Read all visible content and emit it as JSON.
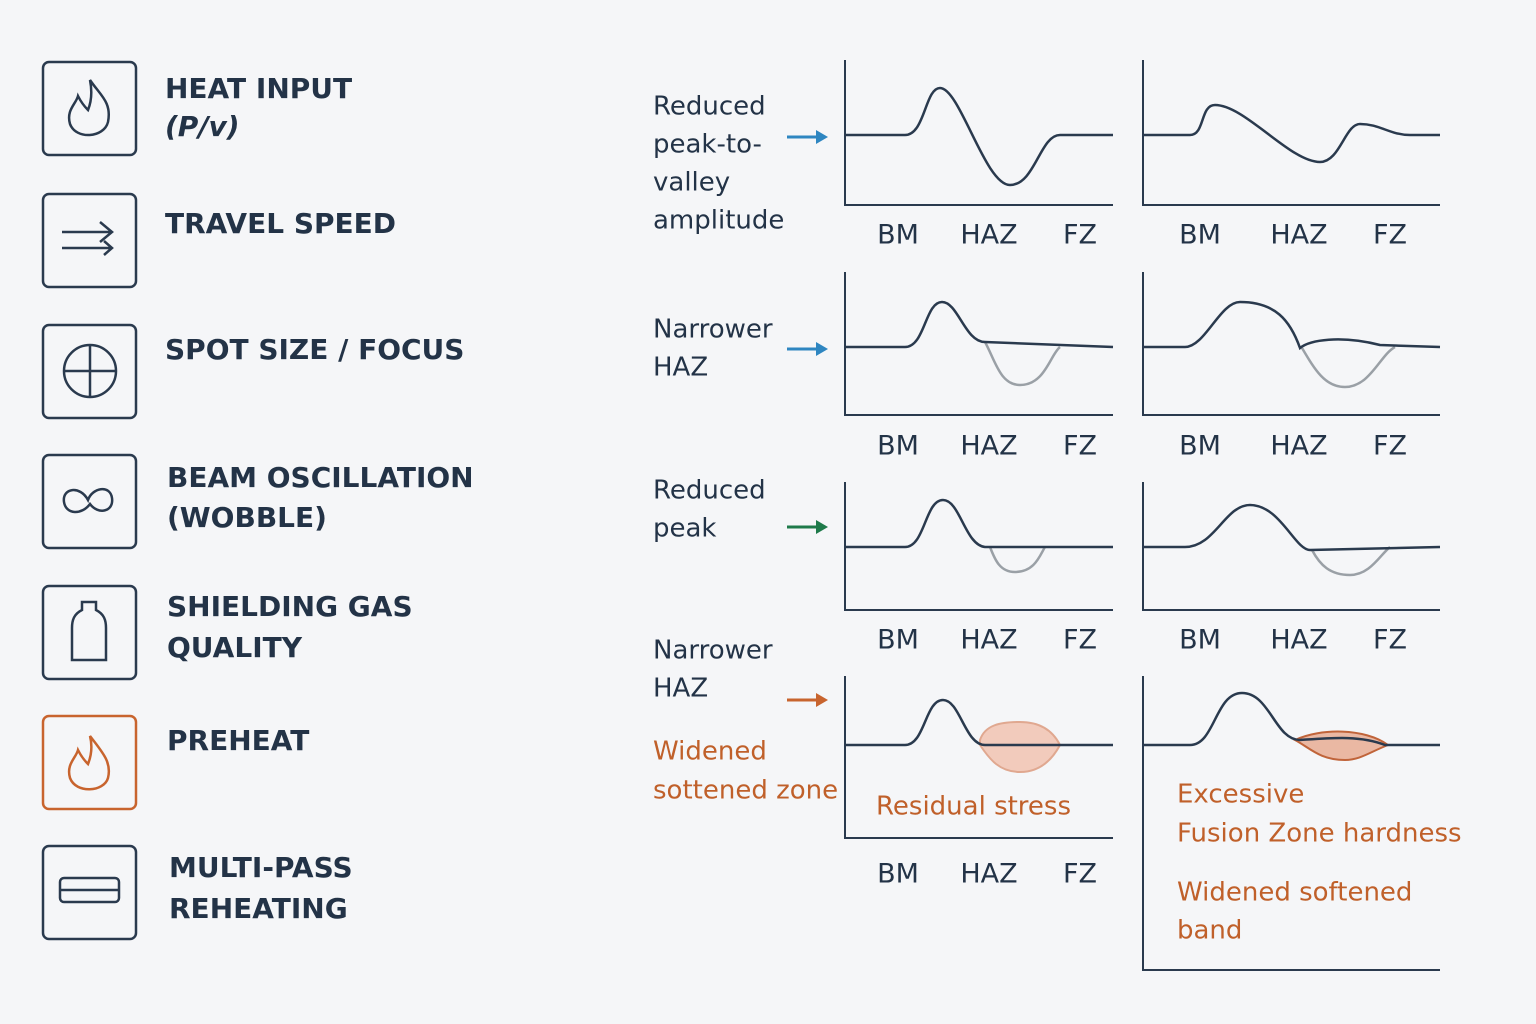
{
  "parameters": [
    {
      "lines": [
        "HEAT INPUT",
        "(P/v)"
      ]
    },
    {
      "lines": [
        "TRAVEL SPEED"
      ]
    },
    {
      "lines": [
        "SPOT SIZE / FOCUS"
      ]
    },
    {
      "lines": [
        "BEAM OSCILLATION",
        "(WOBBLE)"
      ]
    },
    {
      "lines": [
        "SHIELDING GAS",
        "QUALITY"
      ]
    },
    {
      "lines": [
        "PREHEAT"
      ]
    },
    {
      "lines": [
        "MULTI-PASS",
        "REHEATING"
      ]
    }
  ],
  "rows": [
    {
      "note": [
        "Reduced",
        "peak-to-",
        "valley",
        "amplitude"
      ]
    },
    {
      "note": [
        "Narrower",
        "HAZ"
      ]
    },
    {
      "note": [
        "Reduced",
        "peak"
      ]
    },
    {
      "note": [
        "Narrower",
        "HAZ"
      ],
      "warning": [
        "Widened",
        "sottened zone"
      ],
      "left_label": "Residual stress",
      "right_labels": [
        [
          "Excessive",
          "Fusion Zone hardness"
        ],
        [
          "Widened softened",
          "band"
        ]
      ]
    }
  ],
  "axis_labels": [
    "BM",
    "HAZ",
    "FZ"
  ]
}
